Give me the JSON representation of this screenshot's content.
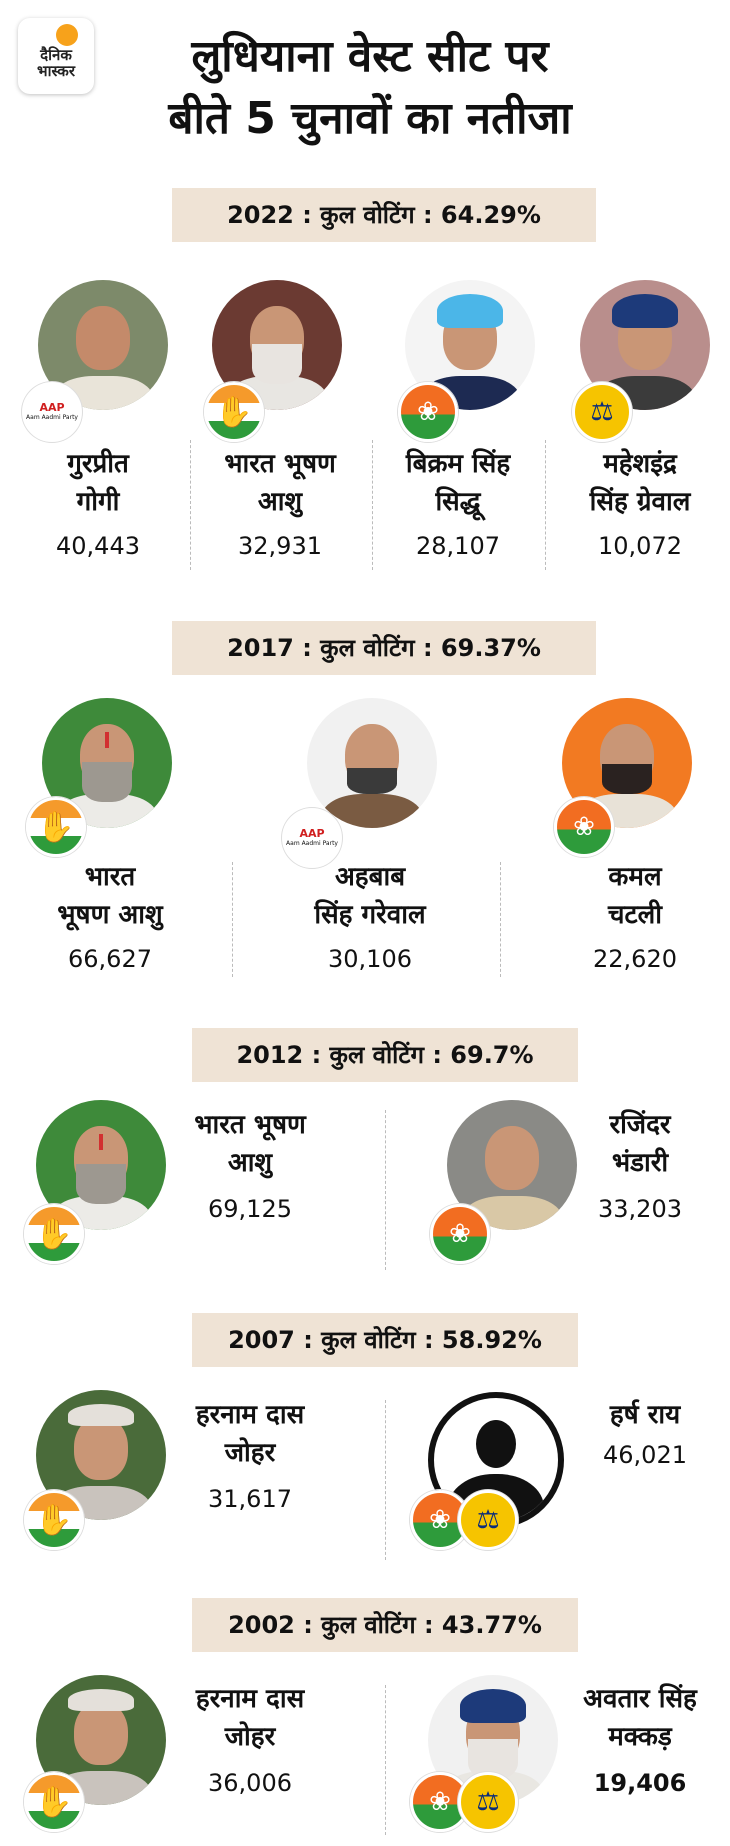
{
  "brand": {
    "logo_text_line1": "दैनिक",
    "logo_text_line2": "भास्कर"
  },
  "title": {
    "line1": "लुधियाना वेस्ट सीट पर",
    "line2": "बीते 5 चुनावों का नतीजा"
  },
  "colors": {
    "banner_bg": "#efe3d5",
    "congress_orange": "#f59a2b",
    "congress_green": "#2e9b3b",
    "bjp_saffron": "#f26d21",
    "sad_yellow": "#f6c400",
    "aap_red": "#d01f1f"
  },
  "elections": [
    {
      "heading": "2022 : कुल वोटिंग : 64.29%",
      "candidates": [
        {
          "name_line1": "गुरप्रीत",
          "name_line2": "गोगी",
          "votes": "40,443",
          "party_icon": "aap-logo"
        },
        {
          "name_line1": "भारत भूषण",
          "name_line2": "आशु",
          "votes": "32,931",
          "party_icon": "congress-hand-icon"
        },
        {
          "name_line1": "बिक्रम सिंह",
          "name_line2": "सिद्धू",
          "votes": "28,107",
          "party_icon": "bjp-lotus-icon"
        },
        {
          "name_line1": "महेशइंद्र",
          "name_line2": "सिंह ग्रेवाल",
          "votes": "10,072",
          "party_icon": "sad-scale-icon"
        }
      ]
    },
    {
      "heading": "2017 : कुल वोटिंग : 69.37%",
      "candidates": [
        {
          "name_line1": "भारत",
          "name_line2": "भूषण आशु",
          "votes": "66,627",
          "party_icon": "congress-hand-icon"
        },
        {
          "name_line1": "अहबाब",
          "name_line2": "सिंह गरेवाल",
          "votes": "30,106",
          "party_icon": "aap-logo"
        },
        {
          "name_line1": "कमल",
          "name_line2": "चटली",
          "votes": "22,620",
          "party_icon": "bjp-lotus-icon"
        }
      ]
    },
    {
      "heading": "2012 : कुल वोटिंग : 69.7%",
      "candidates": [
        {
          "name_line1": "भारत भूषण",
          "name_line2": "आशु",
          "votes": "69,125",
          "party_icon": "congress-hand-icon"
        },
        {
          "name_line1": "रजिंदर",
          "name_line2": "भंडारी",
          "votes": "33,203",
          "party_icon": "bjp-lotus-icon"
        }
      ]
    },
    {
      "heading": "2007 : कुल वोटिंग : 58.92%",
      "candidates": [
        {
          "name_line1": "हरनाम दास",
          "name_line2": "जोहर",
          "votes": "31,617",
          "party_icon": "congress-hand-icon"
        },
        {
          "name_line1": "हर्ष राय",
          "name_line2": "",
          "votes": "46,021",
          "party_icon": "bjp-lotus-icon"
        }
      ]
    },
    {
      "heading": "2002 : कुल वोटिंग : 43.77%",
      "candidates": [
        {
          "name_line1": "हरनाम दास",
          "name_line2": "जोहर",
          "votes": "36,006",
          "party_icon": "congress-hand-icon"
        },
        {
          "name_line1": "अवतार सिंह",
          "name_line2": "मक्कड़",
          "votes": "19,406",
          "party_icon": "bjp-lotus-icon"
        }
      ]
    }
  ],
  "badge_text": {
    "aap_short": "AAP",
    "aap_full": "Aam Aadmi Party",
    "hand": "✋",
    "lotus": "❀",
    "scale": "⚖"
  }
}
